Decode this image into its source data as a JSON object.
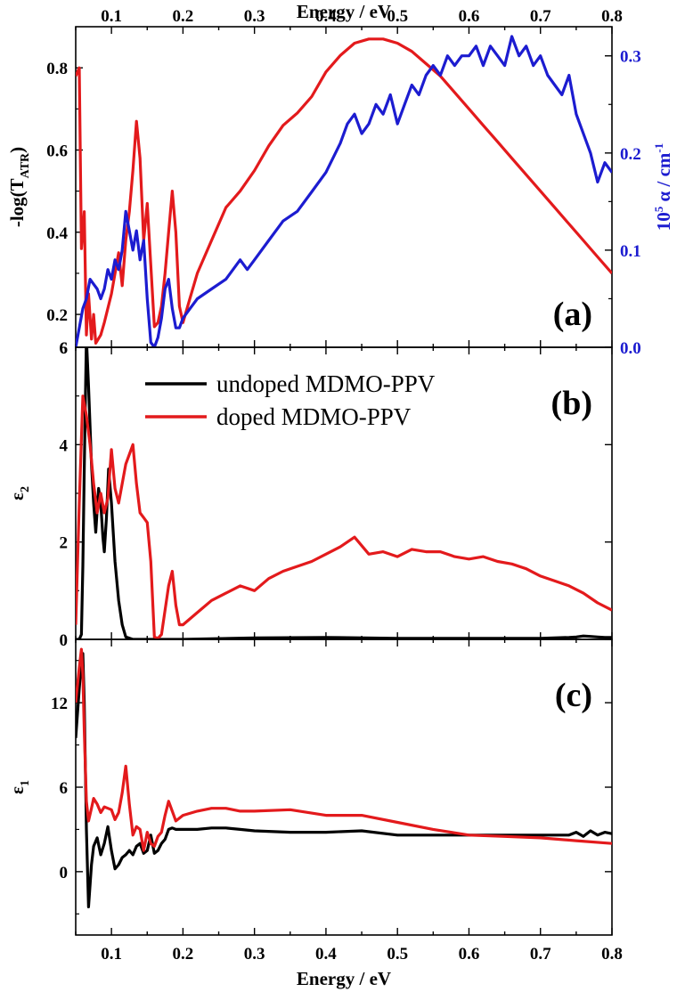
{
  "chart_data": [
    {
      "type": "line",
      "panel_label": "(a)",
      "ylabel": "-log(T",
      "ylabel_sub": "ATR",
      "ylabel_end": ")",
      "y2label": "10",
      "y2label_sup": "5",
      "y2label_rest": " α / cm",
      "y2label_sup2": "-1",
      "top_xlabel": "Energy / eV",
      "xlim": [
        0.05,
        0.8
      ],
      "ylim": [
        0.12,
        0.9
      ],
      "y2lim": [
        0.0,
        0.33
      ],
      "xticks": [
        0.1,
        0.2,
        0.3,
        0.4,
        0.5,
        0.6,
        0.7,
        0.8
      ],
      "xtick_labels": [
        "0.1",
        "0.2",
        "0.3",
        "0.4",
        "0.5",
        "0.6",
        "0.7",
        "0.8"
      ],
      "yticks": [
        0.2,
        0.4,
        0.6,
        0.8
      ],
      "ytick_labels": [
        "0.2",
        "0.4",
        "0.6",
        "0.8"
      ],
      "ybottom_label": "6",
      "y2ticks": [
        0.0,
        0.1,
        0.2,
        0.3
      ],
      "y2tick_labels": [
        "0.0",
        "0.1",
        "0.2",
        "0.3"
      ],
      "series": [
        {
          "color": "#e31a1c",
          "axis": "left",
          "x": [
            0.05,
            0.055,
            0.058,
            0.062,
            0.065,
            0.068,
            0.072,
            0.075,
            0.078,
            0.085,
            0.09,
            0.1,
            0.11,
            0.115,
            0.12,
            0.125,
            0.13,
            0.135,
            0.14,
            0.145,
            0.15,
            0.155,
            0.16,
            0.165,
            0.17,
            0.175,
            0.18,
            0.185,
            0.19,
            0.195,
            0.2,
            0.21,
            0.22,
            0.24,
            0.26,
            0.28,
            0.3,
            0.32,
            0.34,
            0.36,
            0.38,
            0.4,
            0.42,
            0.44,
            0.46,
            0.48,
            0.5,
            0.52,
            0.54,
            0.56,
            0.58,
            0.6,
            0.62,
            0.64,
            0.66,
            0.68,
            0.7,
            0.72,
            0.74,
            0.76,
            0.78,
            0.8
          ],
          "y": [
            0.78,
            0.8,
            0.36,
            0.45,
            0.15,
            0.25,
            0.14,
            0.2,
            0.13,
            0.15,
            0.18,
            0.25,
            0.35,
            0.27,
            0.38,
            0.45,
            0.55,
            0.67,
            0.58,
            0.38,
            0.47,
            0.32,
            0.17,
            0.18,
            0.22,
            0.3,
            0.4,
            0.5,
            0.4,
            0.22,
            0.18,
            0.24,
            0.3,
            0.38,
            0.46,
            0.5,
            0.55,
            0.61,
            0.66,
            0.69,
            0.73,
            0.79,
            0.83,
            0.86,
            0.87,
            0.87,
            0.86,
            0.84,
            0.81,
            0.78,
            0.74,
            0.7,
            0.66,
            0.62,
            0.58,
            0.54,
            0.5,
            0.46,
            0.42,
            0.38,
            0.34,
            0.3
          ]
        },
        {
          "color": "#1c1cd0",
          "axis": "right",
          "x": [
            0.05,
            0.055,
            0.06,
            0.065,
            0.07,
            0.075,
            0.08,
            0.085,
            0.09,
            0.095,
            0.1,
            0.105,
            0.11,
            0.115,
            0.12,
            0.125,
            0.13,
            0.135,
            0.14,
            0.145,
            0.15,
            0.155,
            0.16,
            0.165,
            0.17,
            0.175,
            0.18,
            0.185,
            0.19,
            0.195,
            0.2,
            0.21,
            0.22,
            0.24,
            0.26,
            0.28,
            0.29,
            0.3,
            0.32,
            0.34,
            0.36,
            0.38,
            0.4,
            0.42,
            0.43,
            0.44,
            0.45,
            0.46,
            0.47,
            0.48,
            0.49,
            0.5,
            0.51,
            0.52,
            0.53,
            0.54,
            0.55,
            0.56,
            0.57,
            0.58,
            0.59,
            0.6,
            0.61,
            0.62,
            0.63,
            0.64,
            0.65,
            0.66,
            0.67,
            0.68,
            0.69,
            0.7,
            0.71,
            0.72,
            0.73,
            0.74,
            0.75,
            0.76,
            0.77,
            0.78,
            0.79,
            0.8
          ],
          "y": [
            0.0,
            0.02,
            0.04,
            0.05,
            0.07,
            0.065,
            0.06,
            0.05,
            0.06,
            0.08,
            0.07,
            0.09,
            0.08,
            0.1,
            0.14,
            0.12,
            0.1,
            0.12,
            0.09,
            0.11,
            0.05,
            0.005,
            0.0,
            0.01,
            0.03,
            0.06,
            0.07,
            0.04,
            0.02,
            0.02,
            0.03,
            0.04,
            0.05,
            0.06,
            0.07,
            0.09,
            0.08,
            0.09,
            0.11,
            0.13,
            0.14,
            0.16,
            0.18,
            0.21,
            0.23,
            0.24,
            0.22,
            0.23,
            0.25,
            0.24,
            0.26,
            0.23,
            0.25,
            0.27,
            0.26,
            0.28,
            0.29,
            0.28,
            0.3,
            0.29,
            0.3,
            0.3,
            0.31,
            0.29,
            0.31,
            0.3,
            0.29,
            0.32,
            0.3,
            0.31,
            0.29,
            0.3,
            0.28,
            0.27,
            0.26,
            0.28,
            0.24,
            0.22,
            0.2,
            0.17,
            0.19,
            0.18
          ]
        }
      ]
    },
    {
      "type": "line",
      "panel_label": "(b)",
      "ylabel": "ε",
      "ylabel_sub": "2",
      "xlim": [
        0.05,
        0.8
      ],
      "ylim": [
        0,
        6
      ],
      "yticks": [
        0,
        2,
        4,
        6
      ],
      "ytick_labels": [
        "0",
        "2",
        "4",
        "6"
      ],
      "series": [
        {
          "name": "undoped MDMO-PPV",
          "color": "#000000",
          "x": [
            0.05,
            0.055,
            0.058,
            0.06,
            0.062,
            0.065,
            0.068,
            0.072,
            0.075,
            0.078,
            0.082,
            0.085,
            0.088,
            0.09,
            0.093,
            0.096,
            0.1,
            0.105,
            0.11,
            0.115,
            0.12,
            0.13,
            0.14,
            0.16,
            0.2,
            0.3,
            0.4,
            0.5,
            0.6,
            0.7,
            0.74,
            0.75,
            0.76,
            0.77,
            0.78,
            0.79,
            0.8
          ],
          "y": [
            0,
            0,
            0.1,
            1.5,
            3.5,
            6.2,
            5.2,
            3.6,
            2.8,
            2.2,
            3.1,
            2.8,
            2.1,
            1.8,
            2.5,
            3.5,
            2.8,
            1.6,
            0.8,
            0.3,
            0.05,
            0,
            0,
            0,
            0,
            0.03,
            0.04,
            0.02,
            0.02,
            0.02,
            0.04,
            0.05,
            0.07,
            0.06,
            0.05,
            0.04,
            0.04
          ]
        },
        {
          "name": "doped MDMO-PPV",
          "color": "#e31a1c",
          "x": [
            0.05,
            0.055,
            0.06,
            0.065,
            0.07,
            0.075,
            0.08,
            0.085,
            0.09,
            0.095,
            0.1,
            0.105,
            0.11,
            0.115,
            0.12,
            0.125,
            0.13,
            0.135,
            0.14,
            0.145,
            0.15,
            0.155,
            0.16,
            0.165,
            0.17,
            0.175,
            0.18,
            0.185,
            0.19,
            0.195,
            0.2,
            0.22,
            0.24,
            0.26,
            0.28,
            0.3,
            0.32,
            0.34,
            0.36,
            0.38,
            0.4,
            0.42,
            0.44,
            0.46,
            0.48,
            0.5,
            0.52,
            0.54,
            0.56,
            0.58,
            0.6,
            0.62,
            0.64,
            0.66,
            0.68,
            0.7,
            0.72,
            0.74,
            0.76,
            0.78,
            0.8
          ],
          "y": [
            0.3,
            2.8,
            5.0,
            4.6,
            4.0,
            3.2,
            2.6,
            3.0,
            2.6,
            2.9,
            3.9,
            3.1,
            2.8,
            3.2,
            3.6,
            3.8,
            4.0,
            3.2,
            2.6,
            2.5,
            2.4,
            1.6,
            0.05,
            0.02,
            0.1,
            0.6,
            1.1,
            1.4,
            0.7,
            0.3,
            0.3,
            0.55,
            0.8,
            0.95,
            1.1,
            1.0,
            1.25,
            1.4,
            1.5,
            1.6,
            1.75,
            1.9,
            2.1,
            1.75,
            1.8,
            1.7,
            1.85,
            1.8,
            1.8,
            1.7,
            1.65,
            1.7,
            1.6,
            1.55,
            1.45,
            1.3,
            1.2,
            1.1,
            0.95,
            0.75,
            0.6
          ]
        }
      ]
    },
    {
      "type": "line",
      "panel_label": "(c)",
      "ylabel": "ε",
      "ylabel_sub": "1",
      "xlabel": "Energy / eV",
      "xlim": [
        0.05,
        0.8
      ],
      "ylim": [
        -4.5,
        16.5
      ],
      "xticks": [
        0.1,
        0.2,
        0.3,
        0.4,
        0.5,
        0.6,
        0.7,
        0.8
      ],
      "xtick_labels": [
        "0.1",
        "0.2",
        "0.3",
        "0.4",
        "0.5",
        "0.6",
        "0.7",
        "0.8"
      ],
      "yticks": [
        0,
        6,
        12
      ],
      "ytick_labels": [
        "0",
        "6",
        "12"
      ],
      "series": [
        {
          "color": "#000000",
          "x": [
            0.05,
            0.055,
            0.058,
            0.06,
            0.062,
            0.065,
            0.068,
            0.072,
            0.075,
            0.08,
            0.085,
            0.09,
            0.095,
            0.1,
            0.105,
            0.11,
            0.115,
            0.12,
            0.125,
            0.13,
            0.135,
            0.14,
            0.145,
            0.15,
            0.155,
            0.16,
            0.165,
            0.17,
            0.175,
            0.18,
            0.185,
            0.19,
            0.2,
            0.22,
            0.24,
            0.26,
            0.28,
            0.3,
            0.35,
            0.4,
            0.45,
            0.5,
            0.55,
            0.6,
            0.65,
            0.7,
            0.74,
            0.75,
            0.76,
            0.77,
            0.78,
            0.79,
            0.8
          ],
          "y": [
            9.5,
            13.0,
            15.0,
            15.5,
            12.0,
            3.0,
            -2.5,
            0.5,
            1.8,
            2.4,
            1.2,
            2.0,
            3.2,
            1.5,
            0.2,
            0.5,
            1.0,
            1.2,
            1.5,
            1.2,
            1.8,
            2.0,
            1.3,
            1.5,
            2.6,
            1.3,
            1.5,
            2.0,
            2.3,
            3.0,
            3.1,
            3.0,
            3.0,
            3.0,
            3.1,
            3.1,
            3.0,
            2.9,
            2.8,
            2.8,
            2.9,
            2.6,
            2.6,
            2.6,
            2.6,
            2.6,
            2.6,
            2.8,
            2.5,
            2.9,
            2.6,
            2.8,
            2.7
          ]
        },
        {
          "color": "#e31a1c",
          "x": [
            0.05,
            0.055,
            0.058,
            0.06,
            0.062,
            0.065,
            0.068,
            0.072,
            0.075,
            0.08,
            0.085,
            0.09,
            0.095,
            0.1,
            0.105,
            0.11,
            0.115,
            0.12,
            0.125,
            0.13,
            0.135,
            0.14,
            0.145,
            0.15,
            0.155,
            0.16,
            0.165,
            0.17,
            0.175,
            0.18,
            0.185,
            0.19,
            0.2,
            0.22,
            0.24,
            0.26,
            0.28,
            0.3,
            0.35,
            0.4,
            0.45,
            0.5,
            0.55,
            0.6,
            0.65,
            0.7,
            0.75,
            0.8
          ],
          "y": [
            12.0,
            14.5,
            15.8,
            14.0,
            10.0,
            5.0,
            3.6,
            4.5,
            5.2,
            4.8,
            4.2,
            4.6,
            4.5,
            4.4,
            3.7,
            4.2,
            5.6,
            7.5,
            4.8,
            2.6,
            3.2,
            3.0,
            1.5,
            2.8,
            2.0,
            1.8,
            2.5,
            2.8,
            4.0,
            5.0,
            4.3,
            3.6,
            4.0,
            4.3,
            4.5,
            4.5,
            4.3,
            4.3,
            4.4,
            4.0,
            4.0,
            3.5,
            3.0,
            2.6,
            2.5,
            2.4,
            2.2,
            2.0
          ]
        }
      ]
    }
  ]
}
